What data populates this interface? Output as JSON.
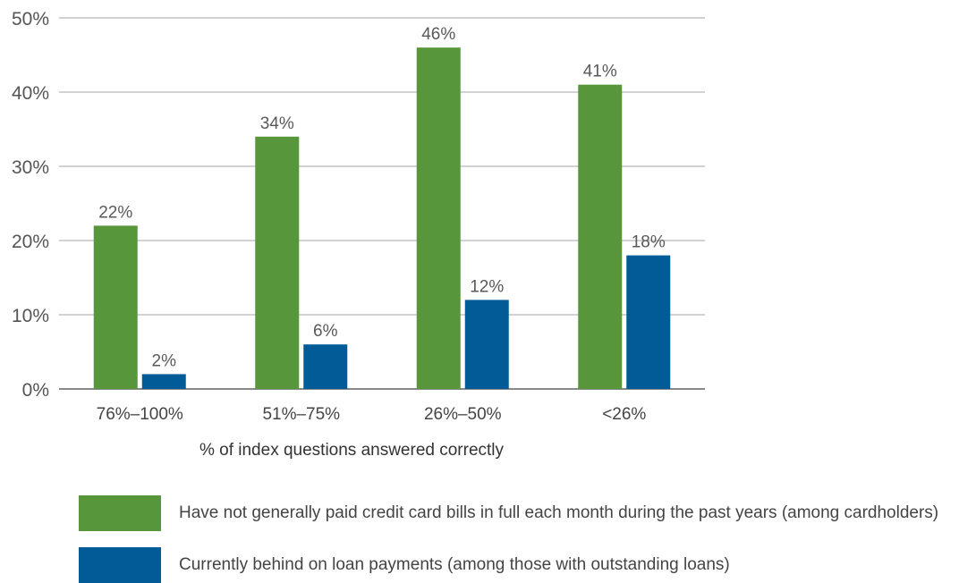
{
  "chart_data": {
    "type": "bar",
    "categories": [
      "76%–100%",
      "51%–75%",
      "26%–50%",
      "<26%"
    ],
    "series": [
      {
        "name": "Have not generally paid credit card bills in full each month during the past years (among cardholders)",
        "values": [
          22,
          34,
          46,
          41
        ],
        "labels": [
          "22%",
          "34%",
          "46%",
          "41%"
        ],
        "color": "#57963a"
      },
      {
        "name": "Currently behind on loan payments (among those with outstanding loans)",
        "values": [
          2,
          6,
          12,
          18
        ],
        "labels": [
          "2%",
          "6%",
          "12%",
          "18%"
        ],
        "color": "#005b96"
      }
    ],
    "yticks": [
      "0%",
      "10%",
      "20%",
      "30%",
      "40%",
      "50%"
    ],
    "ylim": [
      0,
      50
    ],
    "xlabel": "% of index questions answered correctly",
    "ylabel": "",
    "title": "",
    "grid": true,
    "legend_position": "bottom",
    "colors": {
      "grid": "#a6a6a6",
      "axis": "#888888"
    }
  }
}
